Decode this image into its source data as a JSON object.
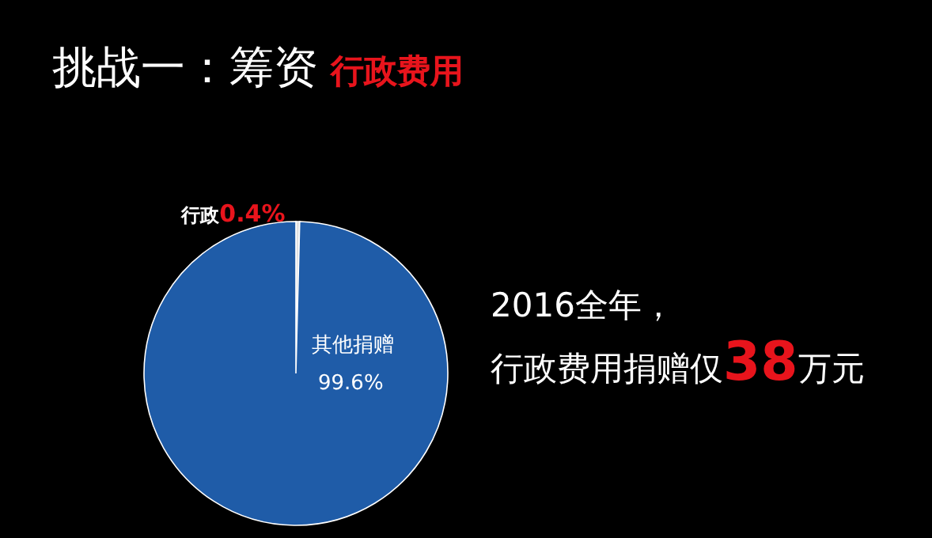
{
  "chart_data": {
    "type": "pie",
    "title": "挑战一：筹资",
    "subtitle": "行政费用",
    "categories": [
      "行政",
      "其他捐赠"
    ],
    "values": [
      0.4,
      99.6
    ],
    "colors": [
      "#e0e0e0",
      "#1f5ca8"
    ],
    "value_labels": [
      "0.4%",
      "99.6%"
    ],
    "annotations": [
      "2016全年，",
      "行政费用捐赠仅**38**万元"
    ]
  }
}
